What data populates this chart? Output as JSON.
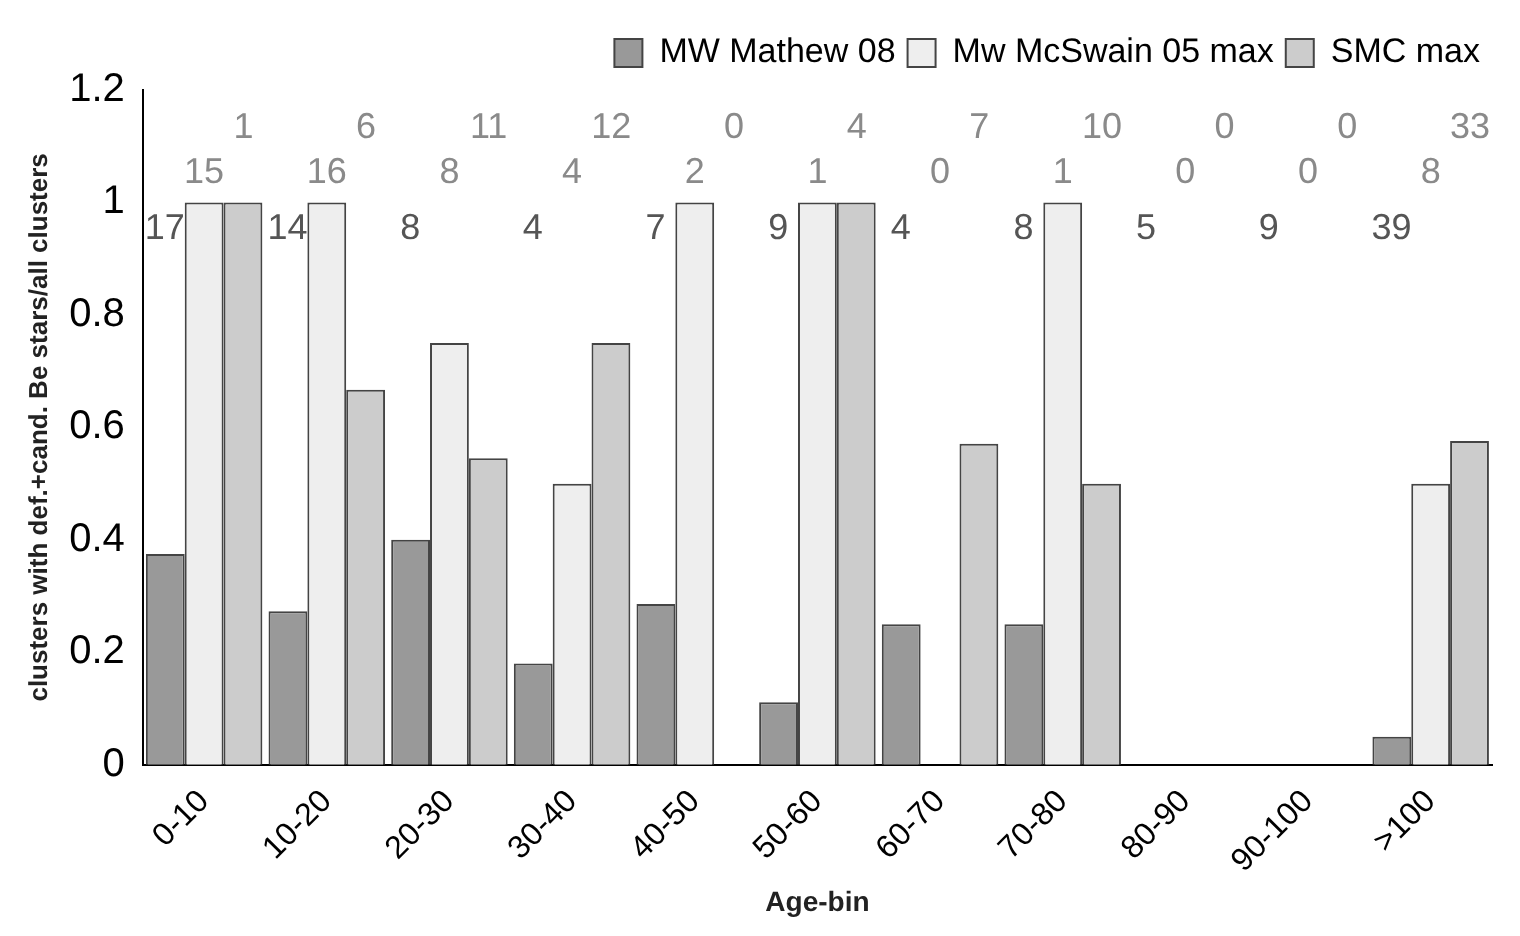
{
  "chart_data": {
    "type": "bar",
    "xlabel": "Age-bin",
    "ylabel": "clusters with def.+cand. Be stars/all clusters",
    "categories": [
      "0-10",
      "10-20",
      "20-30",
      "30-40",
      "40-50",
      "50-60",
      "60-70",
      "70-80",
      "80-90",
      "90-100",
      ">100"
    ],
    "series": [
      {
        "name": "MW Mathew 08",
        "color": "#999999",
        "values": [
          0.375,
          0.273,
          0.4,
          0.18,
          0.286,
          0.111,
          0.25,
          0.25,
          0,
          0,
          0.05
        ]
      },
      {
        "name": "Mw McSwain 05 max",
        "color": "#eeeeee",
        "values": [
          1,
          1,
          0.75,
          0.5,
          1,
          1,
          null,
          1,
          null,
          null,
          0.5
        ]
      },
      {
        "name": "SMC max",
        "color": "#cccccc",
        "values": [
          1,
          0.667,
          0.545,
          0.75,
          null,
          1,
          0.571,
          0.5,
          null,
          null,
          0.576
        ]
      }
    ],
    "ylim": [
      0,
      1.2
    ],
    "yticks": [
      0,
      0.2,
      0.4,
      0.6,
      0.8,
      1,
      1.2
    ],
    "grid": false,
    "legend": "top right",
    "annotations": [
      "1",
      "6",
      "11",
      "12",
      "0",
      "4",
      "7",
      "10",
      "0",
      "0",
      "33",
      "15",
      "16",
      "8",
      "4",
      "2",
      "1",
      "0",
      "1",
      "0",
      "0",
      "8",
      "17",
      "14",
      "8",
      "4",
      "7",
      "9",
      "4",
      "8",
      "5",
      "9",
      "39"
    ]
  }
}
